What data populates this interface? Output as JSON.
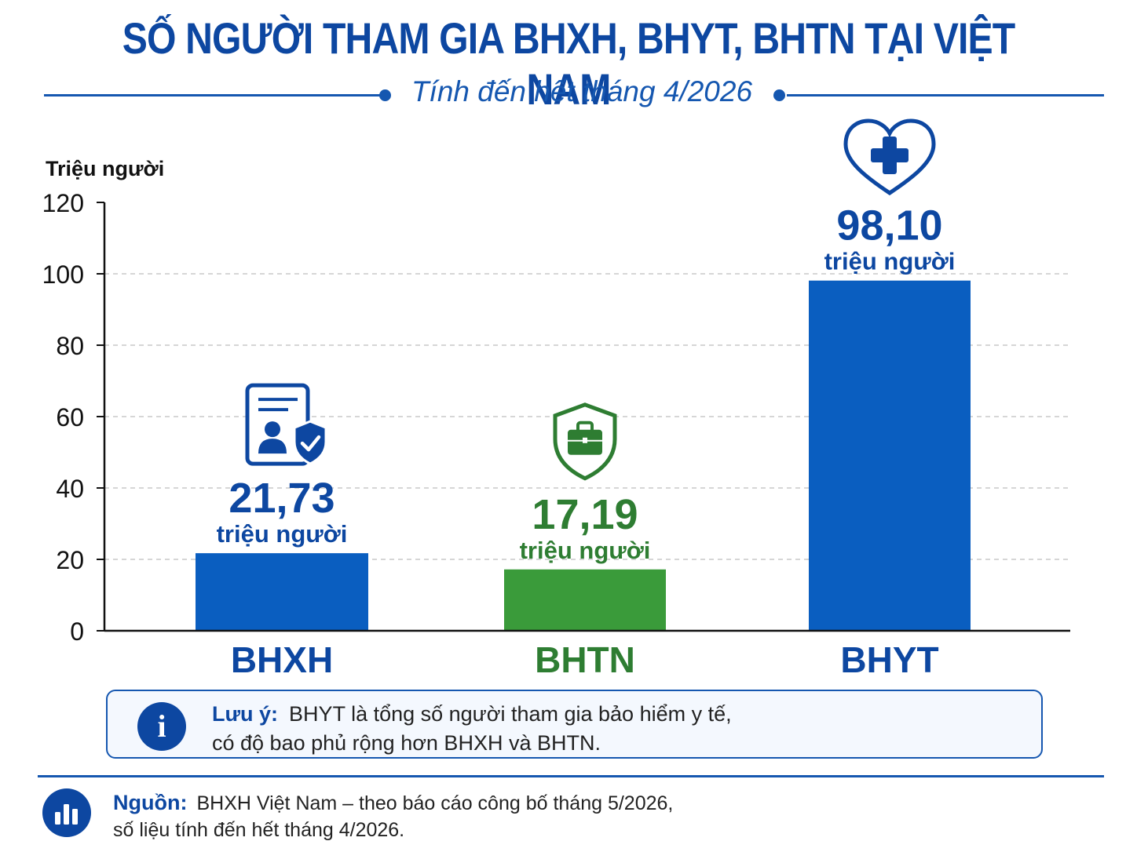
{
  "title": "SỐ NGƯỜI THAM GIA BHXH, BHYT, BHTN TẠI VIỆT NAM",
  "subtitle": "Tính đến hết tháng 4/2026",
  "chart_data": {
    "type": "bar",
    "ylabel": "Triệu người",
    "xlabel": "",
    "ylim": [
      0,
      120
    ],
    "yticks": [
      0,
      20,
      40,
      60,
      80,
      100,
      120
    ],
    "grid": true,
    "categories": [
      "BHXH",
      "BHTN",
      "BHYT"
    ],
    "values": [
      21.73,
      17.19,
      98.1
    ],
    "value_labels": [
      "21,73",
      "17,19",
      "98,10"
    ],
    "unit_label": "triệu người",
    "bar_colors": [
      "#0a5ec0",
      "#3a9b3a",
      "#0a5ec0"
    ],
    "text_colors": [
      "#0d47a1",
      "#2e7d32",
      "#0d47a1"
    ],
    "icons": [
      "id-card-shield-icon",
      "briefcase-shield-icon",
      "heart-plus-icon"
    ]
  },
  "note": {
    "label": "Lưu ý:",
    "line1": "BHYT là tổng số người tham gia bảo hiểm y tế,",
    "line2": "có độ bao phủ rộng hơn BHXH và BHTN."
  },
  "source": {
    "label": "Nguồn:",
    "line1": "BHXH Việt Nam – theo báo cáo công bố tháng 5/2026,",
    "line2": "số liệu tính đến hết tháng 4/2026."
  }
}
